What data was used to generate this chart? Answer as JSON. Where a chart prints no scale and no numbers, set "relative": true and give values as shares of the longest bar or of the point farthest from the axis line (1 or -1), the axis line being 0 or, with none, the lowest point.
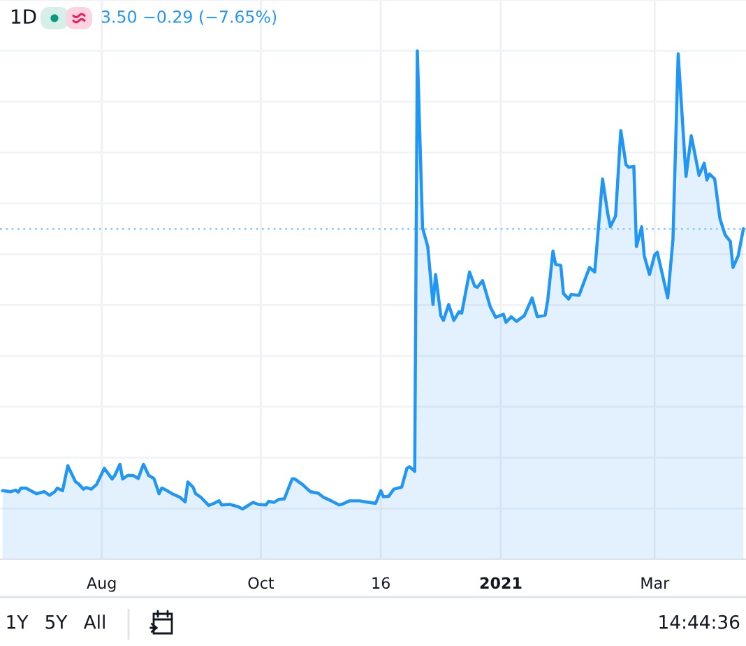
{
  "chart_data": {
    "type": "area",
    "relative": true,
    "x": [
      "2020-06-24",
      "2020-06-27",
      "2020-06-29",
      "2020-06-30",
      "2020-07-01",
      "2020-07-03",
      "2020-07-07",
      "2020-07-10",
      "2020-07-12",
      "2020-07-14",
      "2020-07-15",
      "2020-07-17",
      "2020-07-19",
      "2020-07-22",
      "2020-07-23",
      "2020-07-25",
      "2020-07-26",
      "2020-07-28",
      "2020-07-30",
      "2020-08-02",
      "2020-08-05",
      "2020-08-06",
      "2020-08-08",
      "2020-08-09",
      "2020-08-11",
      "2020-08-13",
      "2020-08-15",
      "2020-08-17",
      "2020-08-19",
      "2020-08-21",
      "2020-08-23",
      "2020-08-24",
      "2020-08-25",
      "2020-08-28",
      "2020-08-31",
      "2020-09-02",
      "2020-09-03",
      "2020-09-05",
      "2020-09-06",
      "2020-09-08",
      "2020-09-11",
      "2020-09-13",
      "2020-09-15",
      "2020-09-16",
      "2020-09-19",
      "2020-09-22",
      "2020-09-24",
      "2020-09-28",
      "2020-09-30",
      "2020-10-03",
      "2020-10-04",
      "2020-10-06",
      "2020-10-08",
      "2020-10-10",
      "2020-10-13",
      "2020-10-14",
      "2020-10-17",
      "2020-10-20",
      "2020-10-23",
      "2020-10-25",
      "2020-10-28",
      "2020-10-31",
      "2020-11-01",
      "2020-11-04",
      "2020-11-08",
      "2020-11-10",
      "2020-11-14",
      "2020-11-16",
      "2020-11-17",
      "2020-11-19",
      "2020-11-21",
      "2020-11-24",
      "2020-11-26",
      "2020-11-27",
      "2020-11-29",
      "2020-11-30",
      "2020-12-02",
      "2020-12-04",
      "2020-12-06",
      "2020-12-07",
      "2020-12-09",
      "2020-12-10",
      "2020-12-12",
      "2020-12-14",
      "2020-12-16",
      "2020-12-17",
      "2020-12-20",
      "2020-12-22",
      "2020-12-23",
      "2020-12-25",
      "2020-12-28",
      "2020-12-30",
      "2021-01-02",
      "2021-01-03",
      "2021-01-05",
      "2021-01-07",
      "2021-01-10",
      "2021-01-13",
      "2021-01-15",
      "2021-01-18",
      "2021-01-19",
      "2021-01-21",
      "2021-01-22",
      "2021-01-24",
      "2021-01-25",
      "2021-01-27",
      "2021-01-28",
      "2021-01-31",
      "2021-02-01",
      "2021-02-04",
      "2021-02-06",
      "2021-02-09",
      "2021-02-11",
      "2021-02-12",
      "2021-02-14",
      "2021-02-16",
      "2021-02-18",
      "2021-02-19",
      "2021-02-21",
      "2021-02-22",
      "2021-02-24",
      "2021-02-25",
      "2021-02-27",
      "2021-03-01",
      "2021-03-02",
      "2021-03-06",
      "2021-03-08",
      "2021-03-10",
      "2021-03-13",
      "2021-03-15",
      "2021-03-16",
      "2021-03-18",
      "2021-03-20",
      "2021-03-21",
      "2021-03-22",
      "2021-03-24",
      "2021-03-26",
      "2021-03-28",
      "2021-03-30",
      "2021-03-31",
      "2021-04-02",
      "2021-04-04"
    ],
    "series": [
      {
        "color": "#2196f3",
        "values": [
          0.135,
          0.133,
          0.136,
          0.132,
          0.14,
          0.14,
          0.129,
          0.133,
          0.126,
          0.133,
          0.14,
          0.135,
          0.184,
          0.152,
          0.149,
          0.138,
          0.141,
          0.138,
          0.147,
          0.179,
          0.158,
          0.165,
          0.187,
          0.158,
          0.165,
          0.165,
          0.159,
          0.187,
          0.165,
          0.159,
          0.129,
          0.14,
          0.138,
          0.129,
          0.122,
          0.113,
          0.152,
          0.142,
          0.129,
          0.122,
          0.106,
          0.11,
          0.115,
          0.107,
          0.108,
          0.104,
          0.099,
          0.112,
          0.108,
          0.107,
          0.114,
          0.112,
          0.118,
          0.119,
          0.158,
          0.158,
          0.147,
          0.133,
          0.13,
          0.122,
          0.115,
          0.107,
          0.108,
          0.115,
          0.115,
          0.113,
          0.11,
          0.135,
          0.123,
          0.124,
          0.138,
          0.142,
          0.179,
          0.182,
          0.173,
          1.0,
          0.652,
          0.615,
          0.501,
          0.56,
          0.479,
          0.47,
          0.501,
          0.47,
          0.487,
          0.484,
          0.565,
          0.537,
          0.535,
          0.548,
          0.496,
          0.476,
          0.482,
          0.466,
          0.477,
          0.468,
          0.479,
          0.514,
          0.477,
          0.48,
          0.51,
          0.606,
          0.58,
          0.578,
          0.523,
          0.512,
          0.521,
          0.519,
          0.533,
          0.574,
          0.565,
          0.748,
          0.68,
          0.654,
          0.675,
          0.843,
          0.776,
          0.771,
          0.773,
          0.615,
          0.654,
          0.597,
          0.56,
          0.599,
          0.604,
          0.514,
          0.629,
          0.994,
          0.753,
          0.833,
          0.808,
          0.755,
          0.779,
          0.746,
          0.758,
          0.748,
          0.67,
          0.638,
          0.625,
          0.574,
          0.597,
          0.65
        ]
      }
    ],
    "xlim": [
      "2020-06-23",
      "2021-04-05"
    ],
    "xticks": [
      {
        "value": "2020-08-01",
        "label": "Aug"
      },
      {
        "value": "2020-10-01",
        "label": "Oct"
      },
      {
        "value": "2020-11-16",
        "label": "16"
      },
      {
        "value": "2021-01-01",
        "label": "2021"
      },
      {
        "value": "2021-03-01",
        "label": "Mar"
      }
    ],
    "grid": true,
    "ref_lines": [
      {
        "axis": "y",
        "value": 0.65,
        "color": "#90caf9",
        "line_style": "dotted"
      }
    ],
    "annotations": [
      "1D",
      "3.50 −0.29 (−7.65%)",
      "1Y",
      "5Y",
      "All",
      "14:44:36"
    ]
  }
}
